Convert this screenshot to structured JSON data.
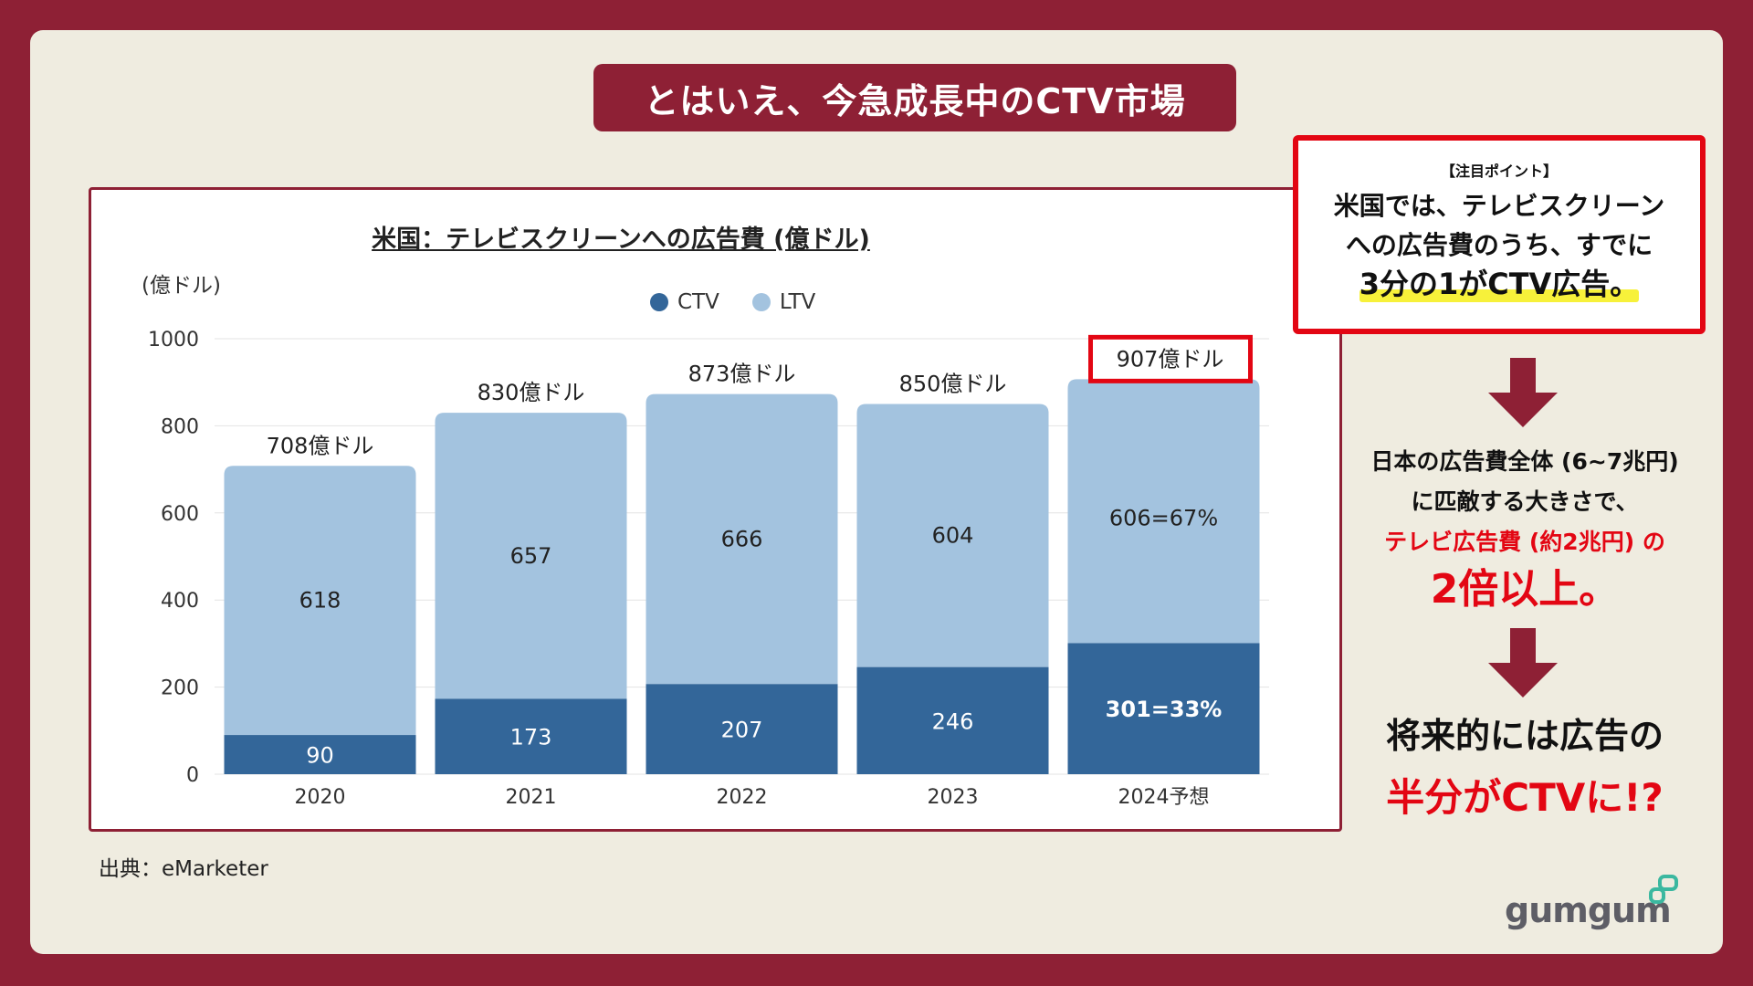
{
  "header": {
    "title": "とはいえ、今急成長中のCTV市場"
  },
  "chart_data": {
    "type": "bar",
    "stacked": true,
    "title": "米国：テレビスクリーンへの広告費 (億ドル)",
    "ylabel": "(億ドル)",
    "ylim": [
      0,
      1000
    ],
    "yticks": [
      0,
      200,
      400,
      600,
      800,
      1000
    ],
    "categories": [
      "2020",
      "2021",
      "2022",
      "2023",
      "2024予想"
    ],
    "series": [
      {
        "name": "CTV",
        "values": [
          90,
          173,
          207,
          246,
          301
        ],
        "labels": [
          "90",
          "173",
          "207",
          "246",
          "301=33%"
        ],
        "color": "#336699"
      },
      {
        "name": "LTV",
        "values": [
          618,
          657,
          666,
          604,
          606
        ],
        "labels": [
          "618",
          "657",
          "666",
          "604",
          "606=67%"
        ],
        "color": "#a3c3df"
      }
    ],
    "totals": [
      708,
      830,
      873,
      850,
      907
    ],
    "total_labels": [
      "708億ドル",
      "830億ドル",
      "873億ドル",
      "850億ドル",
      "907億ドル"
    ],
    "highlight_total_index": 4,
    "highlight_color": "#e30613",
    "grid": true,
    "legend_position": "top-center"
  },
  "source": "出典：eMarketer",
  "point": {
    "heading": "【注目ポイント】",
    "line1": "米国では、テレビスクリーン",
    "line2": "への広告費のうち、すでに",
    "line3": "3分の1がCTV広告。"
  },
  "side": {
    "line1": "日本の広告費全体 (6~7兆円)",
    "line2": "に匹敵する大きさで、",
    "line3": "テレビ広告費 (約2兆円) の",
    "line4": "2倍以上。",
    "line5": "将来的には広告の",
    "line6": "半分がCTVに!?"
  },
  "logo": {
    "text": "gumgum"
  },
  "colors": {
    "brand": "#8e2035",
    "accent_red": "#e30613",
    "ctv": "#336699",
    "ltv": "#a3c3df",
    "highlight": "#f7f13a"
  }
}
